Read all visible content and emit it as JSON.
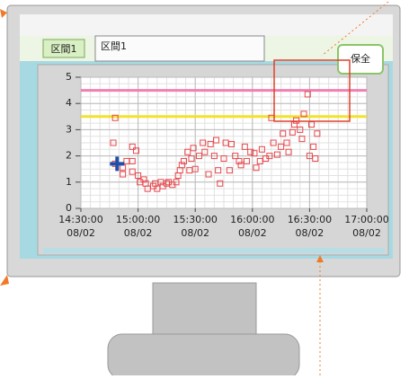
{
  "ui": {
    "tab": "区間1",
    "input": "区間1",
    "button": "保全"
  },
  "chart_data": {
    "type": "scatter",
    "color": "#e8474b",
    "xlim": [
      "14:30:00",
      "17:00:00"
    ],
    "xticks": [
      {
        "value": "14:30:00",
        "label": "14:30:00",
        "date": "08/02"
      },
      {
        "value": "15:00:00",
        "label": "15:00:00",
        "date": "08/02"
      },
      {
        "value": "15:30:00",
        "label": "15:30:00",
        "date": "08/02"
      },
      {
        "value": "16:00:00",
        "label": "16:00:00",
        "date": "08/02"
      },
      {
        "value": "16:30:00",
        "label": "16:30:00",
        "date": "08/02"
      },
      {
        "value": "17:00:00",
        "label": "17:00:00",
        "date": "08/02"
      }
    ],
    "ylim": [
      0,
      5
    ],
    "yticks": [
      0,
      1,
      2,
      3,
      4,
      5
    ],
    "grid": true,
    "reference_lines": [
      {
        "value": 4.5,
        "color": "#f07fb2"
      },
      {
        "value": 3.5,
        "color": "#f2e22e"
      }
    ],
    "cursor": {
      "x": "14:49",
      "y": 1.7,
      "color": "#1f4fa8"
    },
    "x": [
      "14:48",
      "14:47",
      "14:48",
      "14:52",
      "14:52",
      "14:54",
      "14:57",
      "14:59",
      "14:57",
      "14:57",
      "15:00",
      "15:01",
      "15:03",
      "15:04",
      "15:05",
      "15:08",
      "15:09",
      "15:10",
      "15:12",
      "15:13",
      "15:15",
      "15:16",
      "15:18",
      "15:20",
      "15:21",
      "15:22",
      "15:23",
      "15:24",
      "15:26",
      "15:27",
      "15:28",
      "15:29",
      "15:30",
      "15:32",
      "15:34",
      "15:35",
      "15:37",
      "15:38",
      "15:40",
      "15:41",
      "15:42",
      "15:43",
      "15:45",
      "15:46",
      "15:48",
      "15:49",
      "15:51",
      "15:53",
      "15:54",
      "15:56",
      "15:57",
      "15:59",
      "16:01",
      "16:02",
      "16:04",
      "16:05",
      "16:07",
      "16:09",
      "16:10",
      "16:11",
      "16:13",
      "16:15",
      "16:16",
      "16:18",
      "16:19",
      "16:21",
      "16:22",
      "16:23",
      "16:25",
      "16:26",
      "16:27",
      "16:29",
      "16:30",
      "16:31",
      "16:32",
      "16:33",
      "16:34"
    ],
    "values": [
      3.45,
      2.5,
      1.7,
      1.55,
      1.3,
      1.8,
      2.35,
      2.2,
      1.8,
      1.4,
      1.25,
      1.0,
      1.1,
      0.95,
      0.75,
      0.85,
      0.95,
      0.75,
      1.0,
      0.85,
      0.95,
      1.0,
      0.9,
      1.0,
      1.25,
      1.45,
      1.65,
      1.8,
      2.15,
      1.45,
      1.9,
      2.3,
      1.5,
      2.0,
      2.5,
      2.15,
      1.3,
      2.45,
      2.0,
      2.6,
      1.45,
      0.95,
      1.9,
      2.5,
      1.45,
      2.45,
      2.0,
      1.8,
      1.65,
      2.35,
      1.8,
      2.15,
      2.1,
      1.55,
      1.8,
      2.25,
      1.9,
      2.0,
      3.45,
      2.5,
      2.05,
      2.35,
      2.85,
      2.5,
      2.15,
      2.9,
      3.2,
      3.35,
      3.0,
      2.65,
      3.6,
      4.35,
      2.0,
      3.2,
      2.35,
      1.9,
      2.85
    ]
  }
}
